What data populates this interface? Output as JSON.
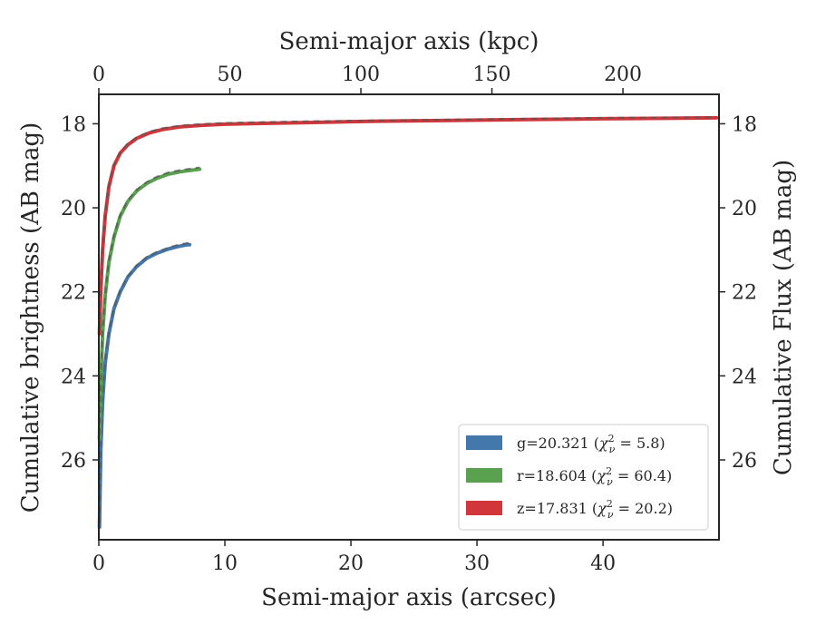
{
  "chart_data": {
    "type": "line",
    "xlabel": "Semi-major axis (arcsec)",
    "xlabel_top": "Semi-major axis (kpc)",
    "ylabel": "Cumulative brightness (AB mag)",
    "ylabel_right": "Cumulative Flux (AB mag)",
    "xlim": [
      0,
      49.2
    ],
    "ylim": [
      27.9,
      17.3
    ],
    "y_inverted": true,
    "x_ticks": [
      0,
      10,
      20,
      30,
      40
    ],
    "x_top_ticks": [
      0,
      50,
      100,
      150,
      200
    ],
    "x_top_label_ticks": [
      "0",
      "50",
      "100",
      "150",
      "200"
    ],
    "x_top_kpc_per_arcsec": 4.81,
    "y_ticks": [
      18,
      20,
      22,
      24,
      26
    ],
    "grid": false,
    "legend_position": "lower-right",
    "series": [
      {
        "name": "g=20.321 (χ²ν = 5.8)",
        "legend_text": "g=20.321 (",
        "legend_chi": "χ",
        "legend_sup": "2",
        "legend_sub": "ν",
        "legend_value": " = 5.8)",
        "color": "#4477aa",
        "x": [
          0.05,
          0.15,
          0.3,
          0.5,
          0.8,
          1.2,
          1.7,
          2.3,
          3.0,
          3.8,
          4.6,
          5.5,
          6.3,
          7.0,
          7.2
        ],
        "y": [
          27.6,
          25.8,
          24.6,
          23.7,
          23.0,
          22.4,
          22.0,
          21.65,
          21.4,
          21.2,
          21.08,
          20.98,
          20.92,
          20.88,
          20.88
        ],
        "model_y": [
          27.5,
          25.7,
          24.5,
          23.65,
          22.95,
          22.38,
          21.97,
          21.62,
          21.37,
          21.17,
          21.05,
          20.95,
          20.88,
          20.84,
          20.83
        ]
      },
      {
        "name": "r=18.604 (χ²ν = 60.4)",
        "legend_text": "r=18.604 (",
        "legend_chi": "χ",
        "legend_sup": "2",
        "legend_sub": "ν",
        "legend_value": " = 60.4)",
        "color": "#59a14f",
        "x": [
          0.05,
          0.15,
          0.3,
          0.5,
          0.8,
          1.2,
          1.7,
          2.3,
          3.0,
          3.8,
          4.6,
          5.5,
          6.5,
          7.5,
          8.0
        ],
        "y": [
          25.5,
          24.2,
          23.0,
          22.1,
          21.3,
          20.7,
          20.2,
          19.85,
          19.6,
          19.42,
          19.3,
          19.2,
          19.14,
          19.1,
          19.08
        ],
        "model_y": [
          25.4,
          24.1,
          22.95,
          22.05,
          21.25,
          20.65,
          20.17,
          19.82,
          19.57,
          19.39,
          19.26,
          19.16,
          19.1,
          19.06,
          19.04
        ]
      },
      {
        "name": "z=17.831 (χ²ν = 20.2)",
        "legend_text": "z=17.831 (",
        "legend_chi": "χ",
        "legend_sup": "2",
        "legend_sub": "ν",
        "legend_value": " = 20.2)",
        "color": "#d1363a",
        "x": [
          0.05,
          0.15,
          0.3,
          0.5,
          0.8,
          1.2,
          1.7,
          2.3,
          3.0,
          4.0,
          5.0,
          6.5,
          8.0,
          10.0,
          13.0,
          17.0,
          22.0,
          28.0,
          34.0,
          40.0,
          45.0,
          49.0
        ],
        "y": [
          23.0,
          22.0,
          21.0,
          20.2,
          19.5,
          19.0,
          18.7,
          18.5,
          18.35,
          18.22,
          18.14,
          18.07,
          18.04,
          18.01,
          17.99,
          17.97,
          17.94,
          17.92,
          17.9,
          17.88,
          17.87,
          17.86
        ],
        "model_y": [
          22.9,
          21.9,
          20.95,
          20.15,
          19.45,
          18.97,
          18.67,
          18.47,
          18.32,
          18.19,
          18.11,
          18.04,
          18.01,
          17.98,
          17.96,
          17.94,
          17.92,
          17.9,
          17.88,
          17.86,
          17.85,
          17.85
        ]
      }
    ]
  }
}
